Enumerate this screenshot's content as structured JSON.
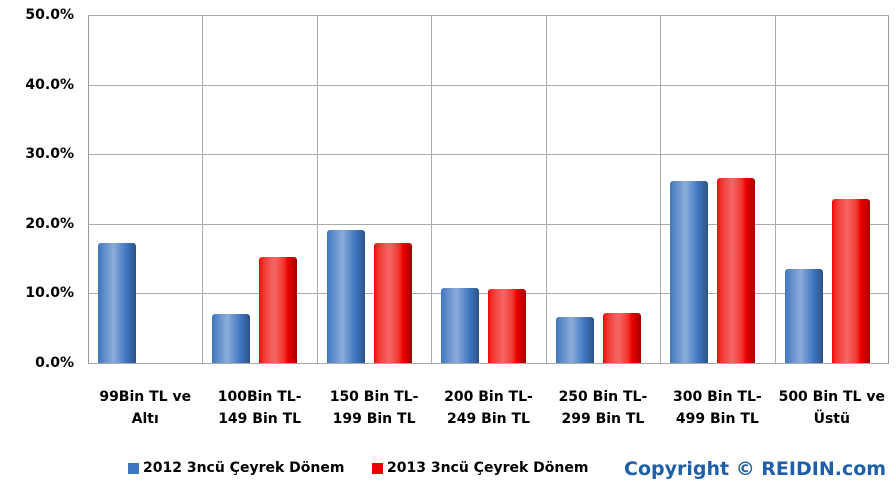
{
  "chart_data": {
    "type": "bar",
    "categories": [
      "99Bin TL ve\nAltı",
      "100Bin TL-\n149 Bin TL",
      "150 Bin TL-\n199 Bin TL",
      "200 Bin TL-\n249 Bin TL",
      "250 Bin TL-\n299 Bin TL",
      "300 Bin TL-\n499 Bin TL",
      "500 Bin TL ve\nÜstü"
    ],
    "series": [
      {
        "name": "2012 3ncü Çeyrek Dönem",
        "color": "#3f76c0",
        "values": [
          17.3,
          7.0,
          19.1,
          10.8,
          6.6,
          26.2,
          13.5
        ]
      },
      {
        "name": "2013 3ncü Çeyrek Dönem",
        "color": "#ee0000",
        "values": [
          null,
          15.3,
          17.3,
          10.6,
          7.2,
          26.6,
          23.6
        ]
      }
    ],
    "ylim": [
      0,
      50
    ],
    "yticks": [
      {
        "value": 0,
        "label": "0.0%"
      },
      {
        "value": 10,
        "label": "10.0%"
      },
      {
        "value": 20,
        "label": "20.0%"
      },
      {
        "value": 30,
        "label": "30.0%"
      },
      {
        "value": 40,
        "label": "40.0%"
      },
      {
        "value": 50,
        "label": "50.0%"
      }
    ],
    "grid": true,
    "annotation": "Copyright © REIDIN.com"
  }
}
